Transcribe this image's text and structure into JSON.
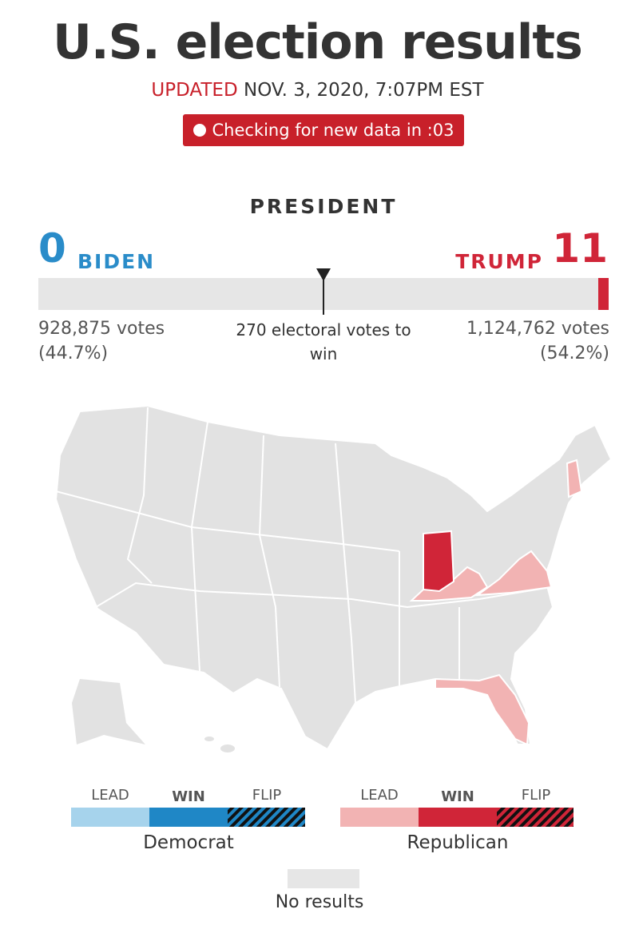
{
  "header": {
    "title": "U.S. election results",
    "updated_label": "UPDATED",
    "updated_time": "NOV. 3, 2020, 7:07PM EST",
    "refresh": "Checking for new data in :03"
  },
  "race": {
    "title": "PRESIDENT",
    "candidates": [
      {
        "name": "BIDEN",
        "electoral_votes": 0,
        "votes": "928,875 votes",
        "share": "(44.7%)"
      },
      {
        "name": "TRUMP",
        "electoral_votes": 11,
        "votes": "1,124,762 votes",
        "share": "(54.2%)"
      }
    ],
    "threshold": "270 electoral votes to win"
  },
  "legend": {
    "groups": [
      {
        "party": "Democrat",
        "labels": [
          "LEAD",
          "WIN",
          "FLIP"
        ]
      },
      {
        "party": "Republican",
        "labels": [
          "LEAD",
          "WIN",
          "FLIP"
        ]
      }
    ],
    "no_results": "No results"
  }
}
